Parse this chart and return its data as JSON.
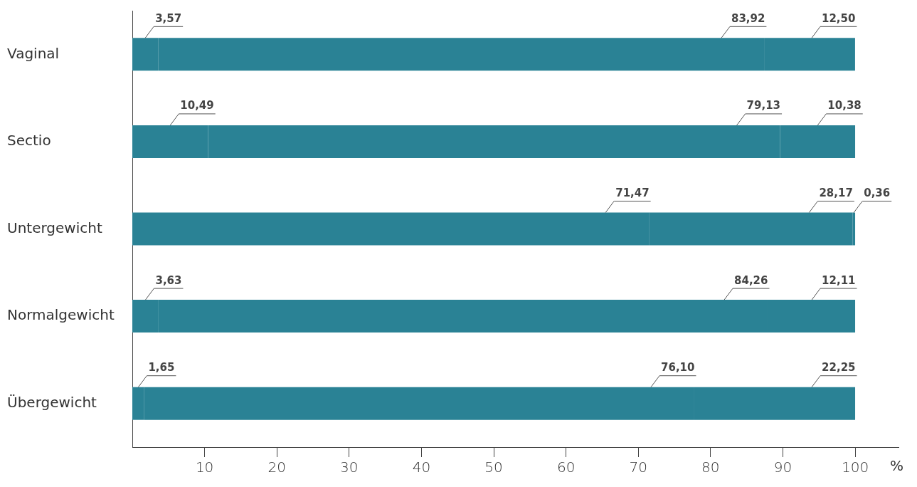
{
  "chart_data": {
    "type": "bar",
    "orientation": "horizontal",
    "stacked": true,
    "categories": [
      "Vaginal",
      "Sectio",
      "Untergewicht",
      "Normalgewicht",
      "Übergewicht"
    ],
    "xlabel": "%",
    "xlim": [
      0,
      106
    ],
    "xticks": [
      10,
      20,
      30,
      40,
      50,
      60,
      70,
      80,
      90,
      100
    ],
    "grid": false,
    "legend": false,
    "series": [
      {
        "color": "#2a8295",
        "values": [
          3.57,
          10.49,
          71.47,
          3.63,
          1.65
        ],
        "value_labels": [
          "3,57",
          "10,49",
          "71,47",
          "3,63",
          "1,65"
        ]
      },
      {
        "color": "#2a8295",
        "values": [
          83.92,
          79.13,
          28.17,
          84.26,
          76.1
        ],
        "value_labels": [
          "83,92",
          "79,13",
          "28,17",
          "84,26",
          "76,10"
        ]
      },
      {
        "color": "#2a8295",
        "values": [
          12.5,
          10.38,
          0.36,
          12.11,
          22.25
        ],
        "value_labels": [
          "12,50",
          "10,38",
          "0,36",
          "12,11",
          "22,25"
        ]
      }
    ]
  }
}
